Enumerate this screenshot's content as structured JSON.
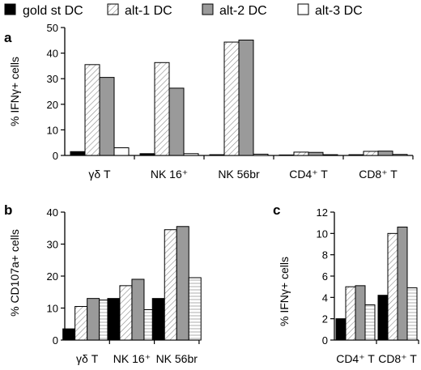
{
  "colors": {
    "gold": "#000000",
    "alt1": "#ffffff",
    "alt2": "#9a9a9a",
    "alt3": "#ffffff",
    "hatch": "#888888",
    "axis": "#000000"
  },
  "legend": {
    "items": [
      {
        "label": "gold st DC",
        "style": "solid-black"
      },
      {
        "label": "alt-1 DC",
        "style": "diagonal-hatch"
      },
      {
        "label": "alt-2 DC",
        "style": "solid-gray"
      },
      {
        "label": "alt-3 DC",
        "style": "white"
      }
    ]
  },
  "chart_data": [
    {
      "panel": "a",
      "type": "bar",
      "ylabel": "% IFNγ+ cells",
      "ylim": [
        0,
        50
      ],
      "yticks": [
        "0",
        "10",
        "20",
        "30",
        "40",
        "50"
      ],
      "categories": [
        "γδ T",
        "NK 16⁺",
        "NK 56br",
        "CD4⁺ T",
        "CD8⁺ T"
      ],
      "series": [
        {
          "name": "gold st DC",
          "values": [
            1.5,
            0.7,
            0.3,
            0.2,
            0.3
          ]
        },
        {
          "name": "alt-1 DC",
          "values": [
            35.5,
            36.3,
            44.3,
            1.3,
            1.6
          ]
        },
        {
          "name": "alt-2 DC",
          "values": [
            30.5,
            26.3,
            45.1,
            1.2,
            1.7
          ]
        },
        {
          "name": "alt-3 DC",
          "values": [
            3.0,
            0.7,
            0.5,
            0.3,
            0.4
          ]
        }
      ]
    },
    {
      "panel": "b",
      "type": "bar",
      "ylabel": "% CD107a+ cells",
      "ylim": [
        0,
        40
      ],
      "yticks": [
        "0",
        "10",
        "20",
        "30",
        "40"
      ],
      "categories": [
        "γδ T",
        "NK 16⁺",
        "NK 56br"
      ],
      "series": [
        {
          "name": "gold st DC",
          "values": [
            3.5,
            13.0,
            13.0
          ]
        },
        {
          "name": "alt-1 DC",
          "values": [
            10.5,
            17.0,
            34.5
          ]
        },
        {
          "name": "alt-2 DC",
          "values": [
            13.0,
            19.0,
            35.5
          ]
        },
        {
          "name": "alt-3 DC",
          "values": [
            12.5,
            9.5,
            19.5
          ]
        }
      ]
    },
    {
      "panel": "c",
      "type": "bar",
      "ylabel": "% IFNγ+ cells",
      "ylim": [
        0,
        12
      ],
      "yticks": [
        "0",
        "2",
        "4",
        "6",
        "8",
        "10",
        "12"
      ],
      "categories": [
        "CD4⁺ T",
        "CD8⁺ T"
      ],
      "series": [
        {
          "name": "gold st DC",
          "values": [
            2.0,
            4.2
          ]
        },
        {
          "name": "alt-1 DC",
          "values": [
            5.0,
            10.0
          ]
        },
        {
          "name": "alt-2 DC",
          "values": [
            5.1,
            10.6
          ]
        },
        {
          "name": "alt-3 DC",
          "values": [
            3.3,
            4.9
          ]
        }
      ]
    }
  ]
}
